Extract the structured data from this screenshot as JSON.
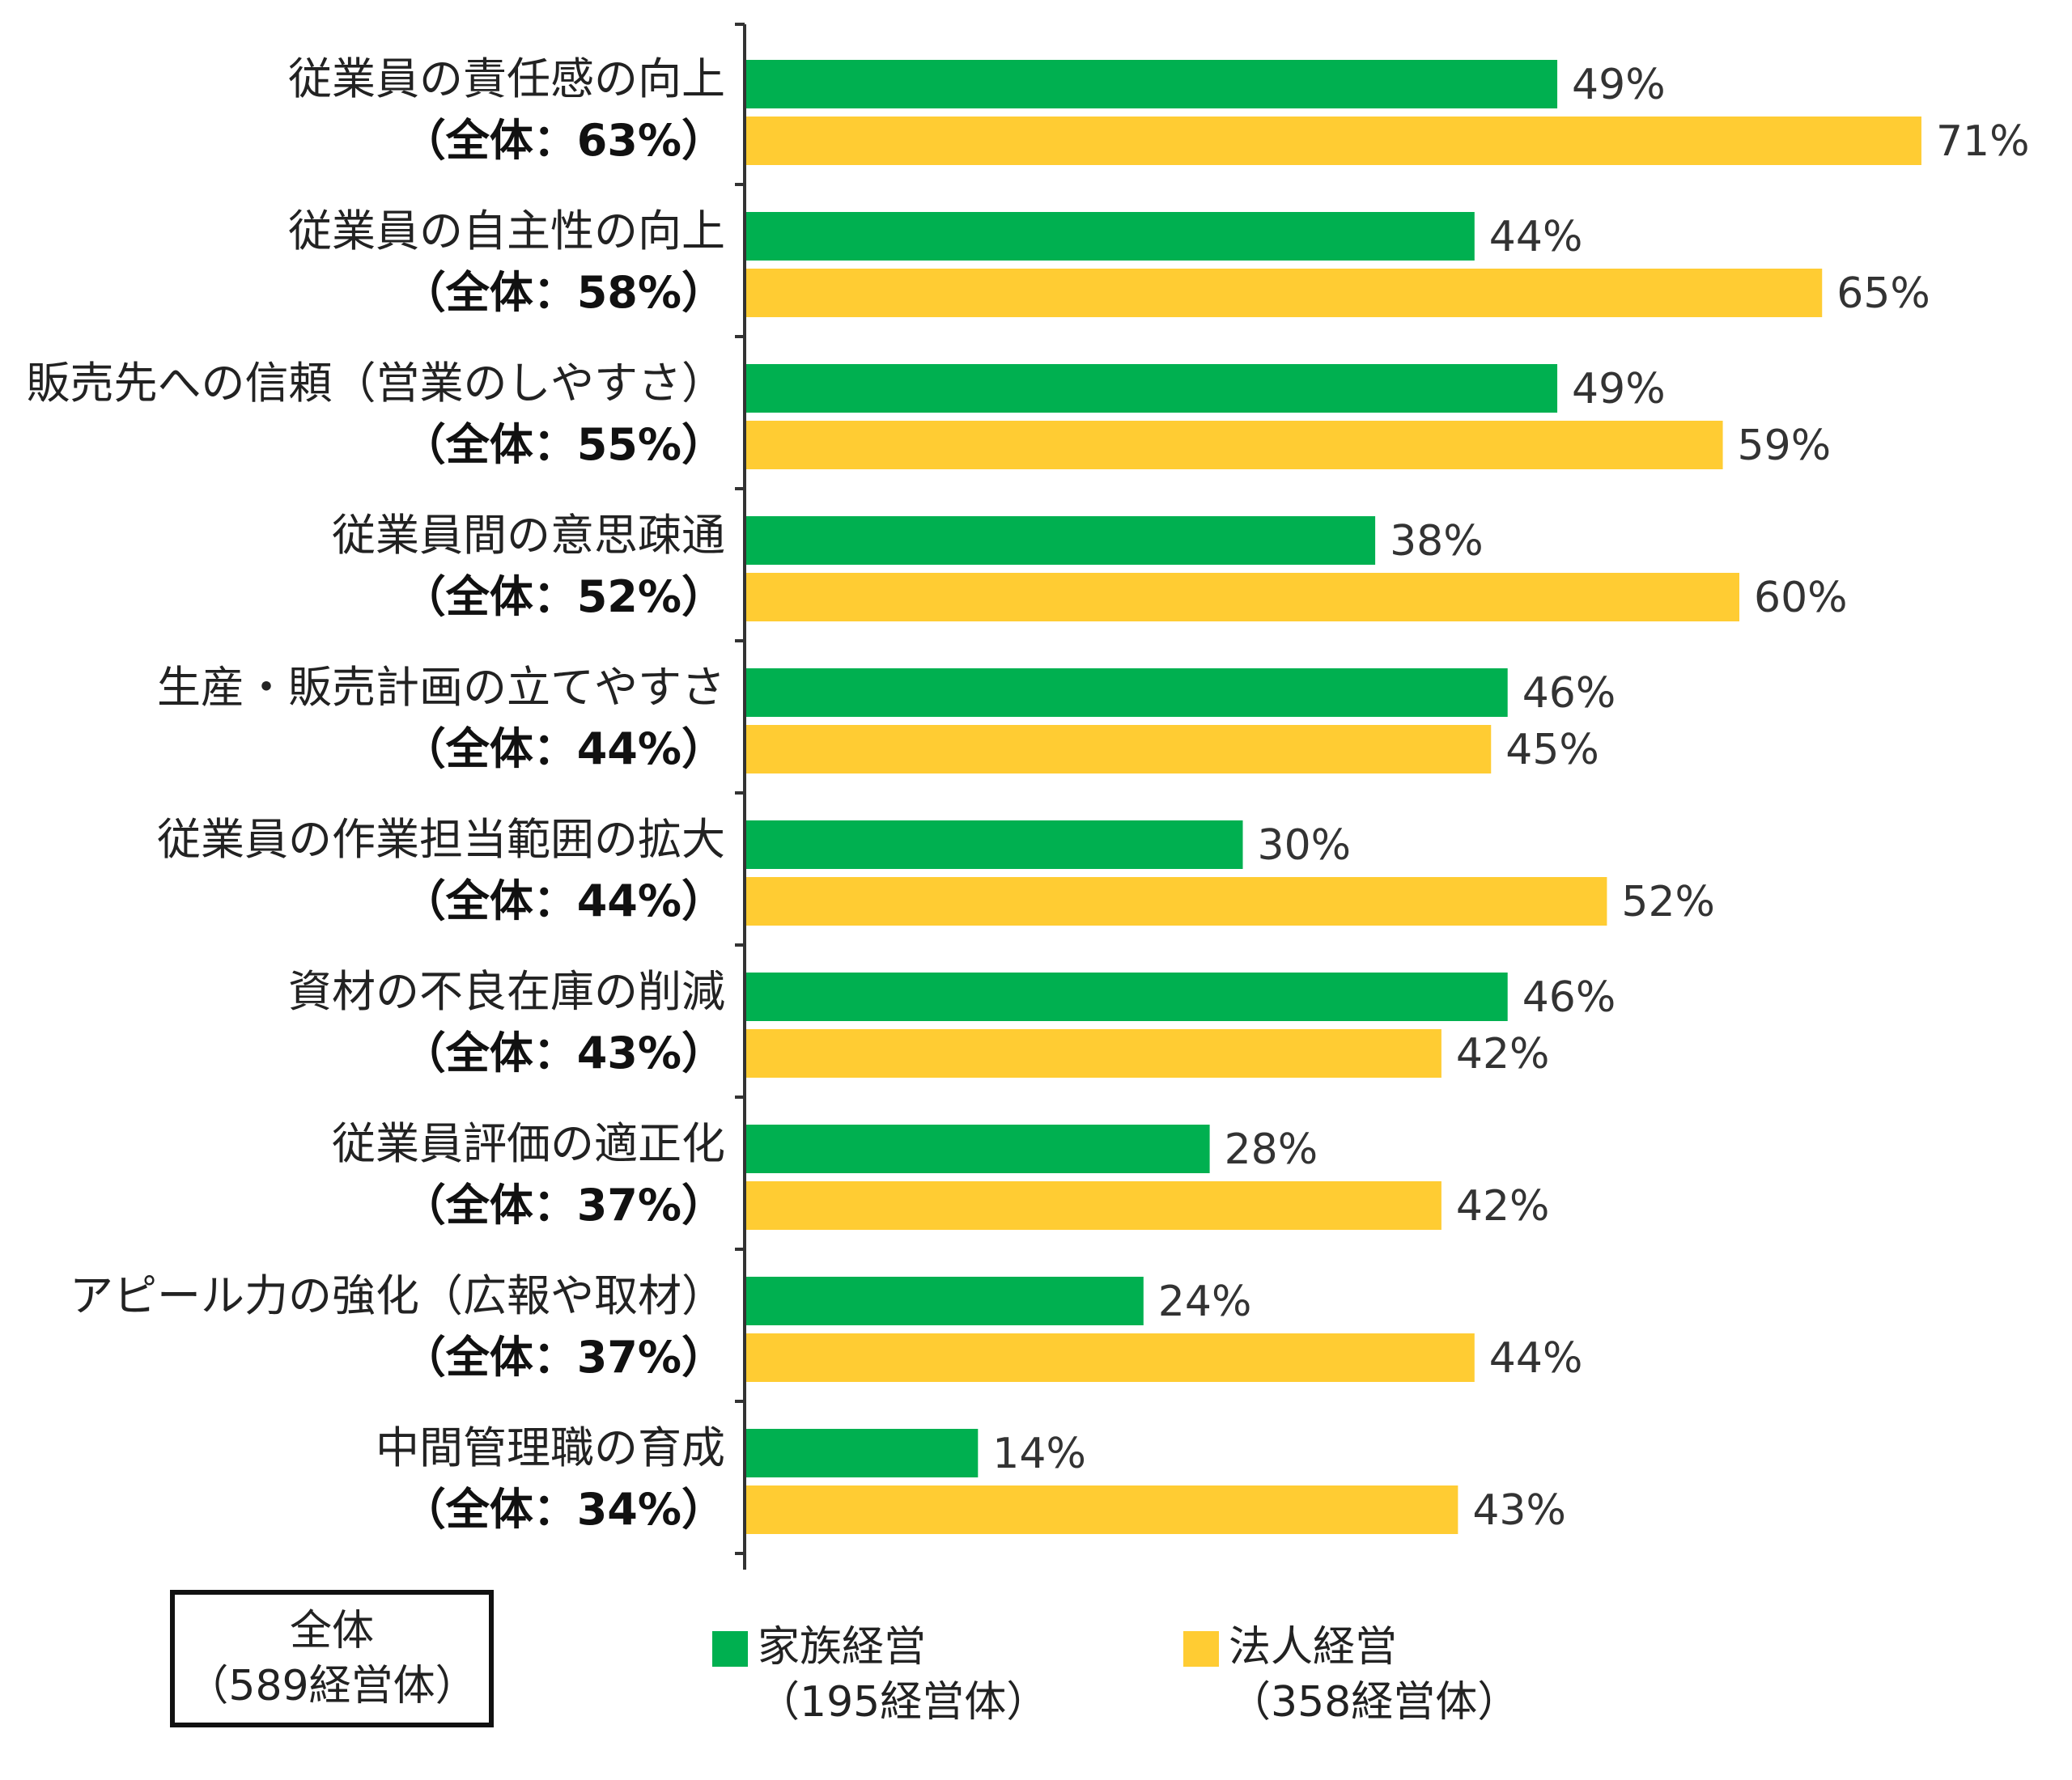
{
  "chart_data": {
    "type": "bar",
    "orientation": "horizontal",
    "categories": [
      {
        "label": "従業員の責任感の向上",
        "total": "（全体：63%）"
      },
      {
        "label": "従業員の自主性の向上",
        "total": "（全体：58%）"
      },
      {
        "label": "販売先への信頼（営業のしやすさ）",
        "total": "（全体：55%）"
      },
      {
        "label": "従業員間の意思疎通",
        "total": "（全体：52%）"
      },
      {
        "label": "生産・販売計画の立てやすさ",
        "total": "（全体：44%）"
      },
      {
        "label": "従業員の作業担当範囲の拡大",
        "total": "（全体：44%）"
      },
      {
        "label": "資材の不良在庫の削減",
        "total": "（全体：43%）"
      },
      {
        "label": "従業員評価の適正化",
        "total": "（全体：37%）"
      },
      {
        "label": "アピール力の強化（広報や取材）",
        "total": "（全体：37%）"
      },
      {
        "label": "中間管理職の育成",
        "total": "（全体：34%）"
      }
    ],
    "series": [
      {
        "name": "家族経営",
        "color": "#00b050",
        "values": [
          49,
          44,
          49,
          38,
          46,
          30,
          46,
          28,
          24,
          14
        ],
        "labels": [
          "49%",
          "44%",
          "49%",
          "38%",
          "46%",
          "30%",
          "46%",
          "28%",
          "24%",
          "14%"
        ]
      },
      {
        "name": "法人経営",
        "color": "#ffcc33",
        "values": [
          71,
          65,
          59,
          60,
          45,
          52,
          42,
          42,
          44,
          43
        ],
        "labels": [
          "71%",
          "65%",
          "59%",
          "60%",
          "45%",
          "52%",
          "42%",
          "42%",
          "44%",
          "43%"
        ]
      }
    ],
    "xlim": [
      0,
      100
    ]
  },
  "legend": {
    "overall_line1": "全体",
    "overall_line2": "（589経営体）",
    "family_line1": "家族経営",
    "family_line2": "（195経営体）",
    "corp_line1": "法人経営",
    "corp_line2": "（358経営体）"
  }
}
